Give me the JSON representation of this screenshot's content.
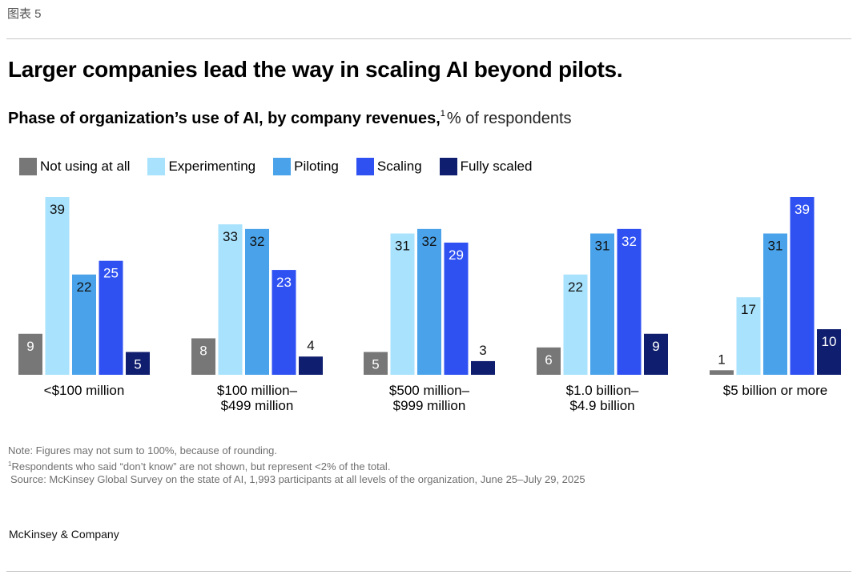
{
  "figure_label": "图表 5",
  "title": "Larger companies lead the way in scaling AI beyond pilots.",
  "subtitle": {
    "bold": "Phase of organization’s use of AI, by company revenues,",
    "footnote_mark": "1",
    "unit": "% of respondents"
  },
  "colors": {
    "Not using at all": "#777777",
    "Experimenting": "#a8e2fc",
    "Piloting": "#4aa3ea",
    "Scaling": "#2f51f2",
    "Fully scaled": "#0f1e6e"
  },
  "chart_data": {
    "type": "bar",
    "title": "Larger companies lead the way in scaling AI beyond pilots.",
    "subtitle": "Phase of organization’s use of AI, by company revenues, % of respondents",
    "xlabel": "",
    "ylabel": "% of respondents",
    "ylim": [
      0,
      39
    ],
    "grid": false,
    "legend_position": "top-left",
    "categories": [
      "<$100 million",
      "$100 million–\n$499 million",
      "$500 million–\n$999 million",
      "$1.0 billion–\n$4.9 billion",
      "$5 billion or more"
    ],
    "series": [
      {
        "name": "Not using at all",
        "values": [
          9,
          8,
          5,
          6,
          1
        ]
      },
      {
        "name": "Experimenting",
        "values": [
          39,
          33,
          31,
          22,
          17
        ]
      },
      {
        "name": "Piloting",
        "values": [
          22,
          32,
          32,
          31,
          31
        ]
      },
      {
        "name": "Scaling",
        "values": [
          25,
          23,
          29,
          32,
          39
        ]
      },
      {
        "name": "Fully scaled",
        "values": [
          5,
          4,
          3,
          9,
          10
        ]
      }
    ]
  },
  "category_lines": [
    [
      "<$100 million"
    ],
    [
      "$100 million–",
      "$499 million"
    ],
    [
      "$500 million–",
      "$999 million"
    ],
    [
      "$1.0 billion–",
      "$4.9 billion"
    ],
    [
      "$5 billion or more"
    ]
  ],
  "notes": {
    "note": "Note: Figures may not sum to 100%, because of rounding.",
    "footnote_mark": "1",
    "footnote": "Respondents who said “don’t know” are not shown, but represent <2% of the total.",
    "source": "Source: McKinsey Global Survey on the state of AI, 1,993 participants at all levels of the organization, June 25–July 29, 2025"
  },
  "brand": "McKinsey & Company"
}
